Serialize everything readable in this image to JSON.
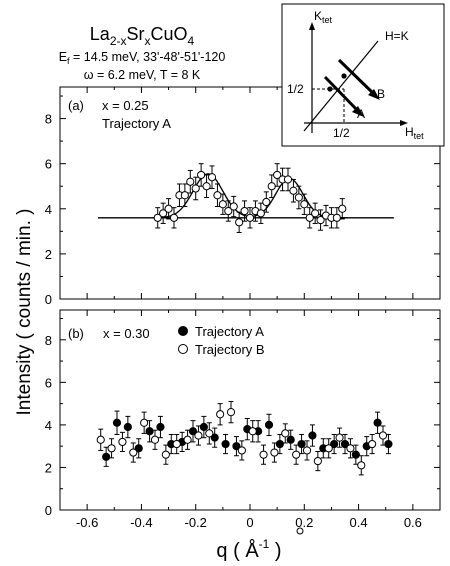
{
  "figure": {
    "title": {
      "base1": "La",
      "sub1": "2-x",
      "base2": "Sr",
      "sub2": "x",
      "base3": "CuO",
      "sub3": "4"
    },
    "subtitle_line1": "E",
    "subtitle_line1_sub": "f",
    "subtitle_line1_rest": " = 14.5 meV,  33'-48'-51'-120",
    "subtitle_line2": "ω = 6.2 meV,  T = 8 K",
    "ylabel": "Intensity ( counts / min. )",
    "xlabel": {
      "main": "q ( Å",
      "sup": "-1",
      "close": " )"
    }
  },
  "inset": {
    "y_axis_label": "K",
    "y_axis_sub": "tet",
    "x_axis_label": "H",
    "x_axis_sub": "tet",
    "diag_label": "H=K",
    "x_tick": "1/2",
    "y_tick": "1/2",
    "trajectory_a_label": "A",
    "trajectory_b_label": "B"
  },
  "chart_data": [
    {
      "type": "scatter",
      "panel_label": "(a)",
      "annotation_x": "x = 0.25",
      "annotation_traj": "Trajectory A",
      "xlim": [
        -0.7,
        0.7
      ],
      "ylim": [
        0,
        9.4
      ],
      "x_ticks": [],
      "y_ticks": [
        0,
        2,
        4,
        6,
        8
      ],
      "grid": false,
      "series": [
        {
          "marker": "open",
          "x": [
            -0.34,
            -0.32,
            -0.3,
            -0.28,
            -0.26,
            -0.24,
            -0.22,
            -0.2,
            -0.18,
            -0.16,
            -0.14,
            -0.12,
            -0.1,
            -0.08,
            -0.06,
            -0.04,
            -0.02,
            0.0,
            0.02,
            0.04,
            0.06,
            0.08,
            0.1,
            0.12,
            0.14,
            0.16,
            0.18,
            0.2,
            0.22,
            0.24,
            0.26,
            0.28,
            0.3,
            0.32,
            0.34
          ],
          "y": [
            3.6,
            3.8,
            4.0,
            3.6,
            4.6,
            4.6,
            5.2,
            4.9,
            5.5,
            5.0,
            5.4,
            4.6,
            4.2,
            3.9,
            4.1,
            3.4,
            3.9,
            3.6,
            3.9,
            3.8,
            4.3,
            5.0,
            5.5,
            5.3,
            5.3,
            4.8,
            4.5,
            4.2,
            3.6,
            3.8,
            3.5,
            3.7,
            3.6,
            3.6,
            4.0
          ],
          "err": [
            0.45,
            0.45,
            0.45,
            0.45,
            0.5,
            0.5,
            0.5,
            0.5,
            0.5,
            0.5,
            0.5,
            0.5,
            0.45,
            0.45,
            0.45,
            0.45,
            0.45,
            0.45,
            0.45,
            0.45,
            0.45,
            0.5,
            0.5,
            0.5,
            0.5,
            0.5,
            0.5,
            0.45,
            0.45,
            0.45,
            0.45,
            0.45,
            0.45,
            0.45,
            0.45
          ]
        }
      ],
      "fit": {
        "background": 3.6,
        "peaks": [
          {
            "center": -0.155,
            "amplitude": 1.95,
            "sigma": 0.055
          },
          {
            "center": 0.145,
            "amplitude": 1.75,
            "sigma": 0.05
          }
        ],
        "x_range": [
          -0.36,
          0.36
        ]
      },
      "background_line": {
        "y": 3.6,
        "x_range": [
          -0.56,
          0.53
        ]
      }
    },
    {
      "type": "scatter",
      "panel_label": "(b)",
      "annotation_x": "x = 0.30",
      "xlim": [
        -0.7,
        0.7
      ],
      "ylim": [
        0,
        9.4
      ],
      "x_ticks": [
        -0.6,
        -0.4,
        -0.2,
        0,
        0.2,
        0.4,
        0.6
      ],
      "x_tick_labels": [
        "-0.6",
        "-0.4",
        "-0.2",
        "0",
        "0.2",
        "0.4",
        "0.6"
      ],
      "y_ticks": [
        0,
        2,
        4,
        6,
        8
      ],
      "grid": false,
      "legend_position": "top-center",
      "series": [
        {
          "name": "Trajectory A",
          "marker": "filled",
          "x": [
            -0.53,
            -0.49,
            -0.45,
            -0.41,
            -0.37,
            -0.33,
            -0.29,
            -0.25,
            -0.21,
            -0.17,
            -0.13,
            -0.09,
            -0.05,
            -0.01,
            0.03,
            0.07,
            0.11,
            0.15,
            0.19,
            0.23,
            0.27,
            0.31,
            0.35,
            0.39,
            0.43,
            0.47,
            0.51
          ],
          "y": [
            2.5,
            4.1,
            3.9,
            2.9,
            3.7,
            3.9,
            3.1,
            3.2,
            3.7,
            3.9,
            3.4,
            3.1,
            3.0,
            3.8,
            3.7,
            4.0,
            3.1,
            3.3,
            3.1,
            3.5,
            2.9,
            3.1,
            3.1,
            2.6,
            3.0,
            4.1,
            3.1
          ],
          "err": [
            0.45,
            0.55,
            0.5,
            0.45,
            0.5,
            0.5,
            0.45,
            0.45,
            0.5,
            0.5,
            0.45,
            0.45,
            0.45,
            0.5,
            0.5,
            0.5,
            0.45,
            0.45,
            0.45,
            0.5,
            0.45,
            0.45,
            0.45,
            0.45,
            0.45,
            0.5,
            0.45
          ]
        },
        {
          "name": "Trajectory B",
          "marker": "open",
          "x": [
            -0.55,
            -0.51,
            -0.47,
            -0.43,
            -0.39,
            -0.35,
            -0.31,
            -0.27,
            -0.23,
            -0.19,
            -0.15,
            -0.11,
            -0.07,
            -0.03,
            0.01,
            0.05,
            0.09,
            0.13,
            0.17,
            0.21,
            0.25,
            0.29,
            0.33,
            0.37,
            0.41,
            0.45,
            0.49
          ],
          "y": [
            3.3,
            2.9,
            3.2,
            2.7,
            4.1,
            3.3,
            2.6,
            3.1,
            3.3,
            3.5,
            3.6,
            4.5,
            4.6,
            2.8,
            3.7,
            2.6,
            2.7,
            3.6,
            2.6,
            2.8,
            2.3,
            2.9,
            3.4,
            2.9,
            2.1,
            3.1,
            3.5
          ],
          "err": [
            0.5,
            0.45,
            0.45,
            0.45,
            0.5,
            0.45,
            0.45,
            0.45,
            0.45,
            0.45,
            0.5,
            0.5,
            0.5,
            0.45,
            0.5,
            0.45,
            0.45,
            0.45,
            0.45,
            0.45,
            0.45,
            0.45,
            0.45,
            0.45,
            0.45,
            0.45,
            0.45
          ]
        }
      ]
    }
  ]
}
